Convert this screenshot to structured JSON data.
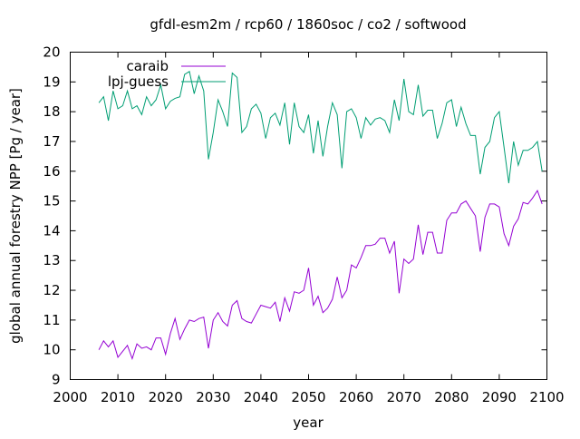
{
  "chart_data": {
    "type": "line",
    "title": "gfdl-esm2m / rcp60 / 1860soc / co2 / softwood",
    "xlabel": "year",
    "ylabel": "global annual forestry NPP [Pg / year]",
    "xlim": [
      2000,
      2100
    ],
    "ylim": [
      9,
      20
    ],
    "xticks": [
      2000,
      2010,
      2020,
      2030,
      2040,
      2050,
      2060,
      2070,
      2080,
      2090,
      2100
    ],
    "yticks": [
      9,
      10,
      11,
      12,
      13,
      14,
      15,
      16,
      17,
      18,
      19,
      20
    ],
    "grid": false,
    "legend_position": "top-left",
    "x_start": 2006,
    "series": [
      {
        "name": "caraib",
        "color": "#9400d3",
        "values": [
          10.0,
          10.3,
          10.1,
          10.3,
          9.75,
          9.95,
          10.15,
          9.7,
          10.2,
          10.05,
          10.1,
          10.0,
          10.4,
          10.4,
          9.85,
          10.55,
          11.05,
          10.35,
          10.7,
          11.0,
          10.95,
          11.05,
          11.1,
          10.05,
          11.0,
          11.25,
          10.95,
          10.8,
          11.5,
          11.65,
          11.05,
          10.95,
          10.9,
          11.2,
          11.5,
          11.45,
          11.4,
          11.6,
          10.95,
          11.75,
          11.3,
          11.95,
          11.9,
          12.0,
          12.75,
          11.5,
          11.8,
          11.25,
          11.4,
          11.7,
          12.45,
          11.75,
          12.0,
          12.85,
          12.75,
          13.1,
          13.5,
          13.5,
          13.55,
          13.75,
          13.75,
          13.25,
          13.65,
          11.9,
          13.05,
          12.9,
          13.05,
          14.2,
          13.2,
          13.95,
          13.95,
          13.25,
          13.25,
          14.35,
          14.6,
          14.6,
          14.9,
          15.0,
          14.75,
          14.5,
          13.3,
          14.45,
          14.9,
          14.9,
          14.8,
          13.9,
          13.5,
          14.15,
          14.4,
          14.95,
          14.9,
          15.1,
          15.35,
          14.9
        ]
      },
      {
        "name": "lpj-guess",
        "color": "#009e73",
        "values": [
          18.3,
          18.5,
          17.7,
          18.7,
          18.1,
          18.2,
          18.7,
          18.1,
          18.2,
          17.9,
          18.5,
          18.2,
          18.4,
          18.9,
          18.1,
          18.35,
          18.45,
          18.5,
          19.25,
          19.35,
          18.6,
          19.2,
          18.7,
          16.4,
          17.3,
          18.4,
          18.0,
          17.5,
          19.3,
          19.15,
          17.3,
          17.5,
          18.1,
          18.25,
          17.95,
          17.1,
          17.8,
          17.95,
          17.55,
          18.3,
          16.9,
          18.3,
          17.5,
          17.3,
          17.9,
          16.6,
          17.7,
          16.5,
          17.5,
          18.3,
          17.9,
          16.1,
          18.0,
          18.1,
          17.8,
          17.1,
          17.8,
          17.55,
          17.75,
          17.8,
          17.7,
          17.3,
          18.4,
          17.7,
          19.1,
          18.0,
          17.9,
          18.9,
          17.85,
          18.05,
          18.05,
          17.1,
          17.6,
          18.3,
          18.4,
          17.5,
          18.15,
          17.6,
          17.2,
          17.2,
          15.9,
          16.8,
          17.0,
          17.8,
          18.0,
          16.8,
          15.6,
          17.0,
          16.2,
          16.7,
          16.7,
          16.8,
          17.0,
          16.0
        ]
      }
    ]
  }
}
